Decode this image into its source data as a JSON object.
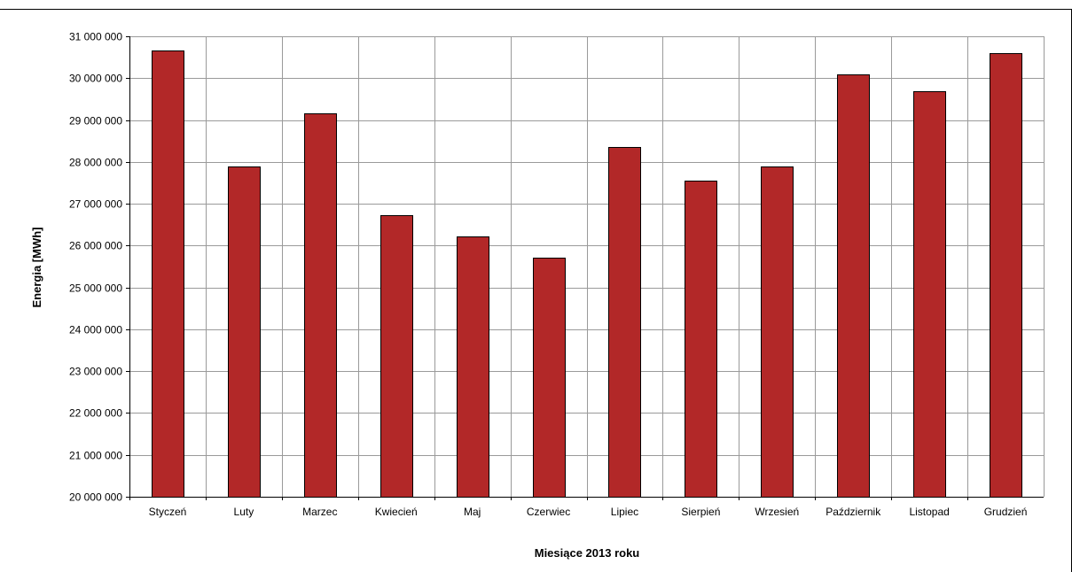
{
  "chart_data": {
    "type": "bar",
    "title": "",
    "xlabel": "Miesiące 2013  roku",
    "ylabel": "Energia  [MWh]",
    "categories": [
      "Styczeń",
      "Luty",
      "Marzec",
      "Kwiecień",
      "Maj",
      "Czerwiec",
      "Lipiec",
      "Sierpień",
      "Wrzesień",
      "Październik",
      "Listopad",
      "Grudzień"
    ],
    "values": [
      30670000,
      27900000,
      29150000,
      26730000,
      26220000,
      25710000,
      28350000,
      27560000,
      27880000,
      30090000,
      29690000,
      30600000
    ],
    "ylim": [
      20000000,
      31000000
    ],
    "ytick_step": 1000000,
    "yticks": [
      "20 000 000",
      "21 000 000",
      "22 000 000",
      "23 000 000",
      "24 000 000",
      "25 000 000",
      "26 000 000",
      "27 000 000",
      "28 000 000",
      "29 000 000",
      "30 000 000",
      "31 000 000"
    ],
    "grid": true,
    "legend": "none",
    "colors": {
      "bar": "#b22828",
      "bar_edge": "#000000",
      "grid": "#9a9a9a",
      "axis": "#000000"
    }
  }
}
